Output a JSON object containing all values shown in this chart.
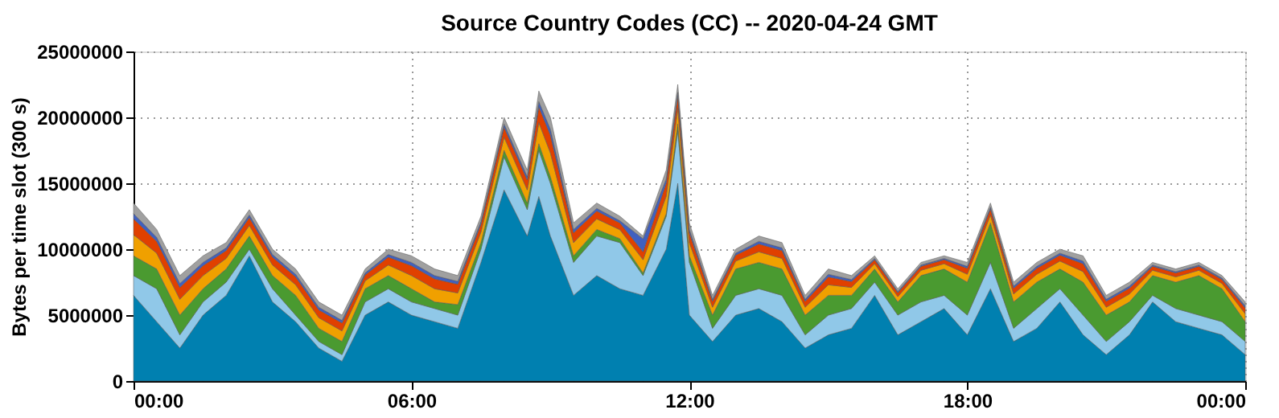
{
  "chart_data": {
    "type": "area",
    "title": "Source Country Codes (CC) -- 2020-04-24 GMT",
    "ylabel": "Bytes per time slot (300 s)",
    "stacked": true,
    "grid": true,
    "legend": false,
    "xlim": [
      0,
      24
    ],
    "xticks": [
      {
        "value": 0,
        "label": "00:00"
      },
      {
        "value": 6,
        "label": "06:00"
      },
      {
        "value": 12,
        "label": "12:00"
      },
      {
        "value": 18,
        "label": "18:00"
      },
      {
        "value": 24,
        "label": "00:00"
      }
    ],
    "ylim": [
      0,
      25000000
    ],
    "yticks": [
      0,
      5000000,
      10000000,
      15000000,
      20000000,
      25000000
    ],
    "x": [
      0,
      0.5,
      1,
      1.5,
      2,
      2.5,
      3,
      3.5,
      4,
      4.5,
      5,
      5.5,
      6,
      6.5,
      7,
      7.5,
      8,
      8.5,
      8.75,
      9,
      9.5,
      10,
      10.5,
      11,
      11.5,
      11.75,
      12,
      12.5,
      13,
      13.5,
      14,
      14.5,
      15,
      15.5,
      16,
      16.5,
      17,
      17.5,
      18,
      18.5,
      19,
      19.5,
      20,
      20.5,
      21,
      21.5,
      22,
      22.5,
      23,
      23.5,
      24
    ],
    "series": [
      {
        "color": "#0080b0",
        "values": [
          6500000,
          4500000,
          2500000,
          5000000,
          6500000,
          9500000,
          6000000,
          4500000,
          2500000,
          1500000,
          5000000,
          6000000,
          5000000,
          4500000,
          4000000,
          9000000,
          14500000,
          11000000,
          14000000,
          11000000,
          6500000,
          8000000,
          7000000,
          6500000,
          10000000,
          15000000,
          5000000,
          3000000,
          5000000,
          5500000,
          4500000,
          2500000,
          3500000,
          4000000,
          6500000,
          3500000,
          4500000,
          5500000,
          3500000,
          7000000,
          3000000,
          4000000,
          6000000,
          3500000,
          2000000,
          3500000,
          6000000,
          4500000,
          4000000,
          3500000,
          2000000
        ]
      },
      {
        "color": "#90c8e8",
        "values": [
          1500000,
          2500000,
          1000000,
          1000000,
          1000000,
          500000,
          1000000,
          500000,
          500000,
          500000,
          1000000,
          1000000,
          1000000,
          1000000,
          1000000,
          1000000,
          2500000,
          2000000,
          3500000,
          4000000,
          2500000,
          3000000,
          3500000,
          1500000,
          2500000,
          4000000,
          4000000,
          1000000,
          1500000,
          1500000,
          2000000,
          1000000,
          1500000,
          1500000,
          1000000,
          1500000,
          1500000,
          1000000,
          1500000,
          2000000,
          1000000,
          1500000,
          1000000,
          1500000,
          1000000,
          1000000,
          500000,
          1000000,
          1000000,
          1000000,
          1000000
        ]
      },
      {
        "color": "#4a9a30",
        "values": [
          1500000,
          1500000,
          1500000,
          1000000,
          1000000,
          1000000,
          1000000,
          1500000,
          1000000,
          1000000,
          1000000,
          1000000,
          1000000,
          500000,
          800000,
          500000,
          500000,
          500000,
          500000,
          500000,
          500000,
          500000,
          300000,
          200000,
          200000,
          500000,
          500000,
          1000000,
          2000000,
          2000000,
          2000000,
          1500000,
          1500000,
          1000000,
          1000000,
          1000000,
          2000000,
          2000000,
          2500000,
          3000000,
          2000000,
          2000000,
          1500000,
          2500000,
          2000000,
          1500000,
          1500000,
          2000000,
          3000000,
          2500000,
          1500000
        ]
      },
      {
        "color": "#f0a000",
        "values": [
          1600000,
          1200000,
          1200000,
          1000000,
          800000,
          800000,
          800000,
          800000,
          800000,
          800000,
          600000,
          800000,
          1000000,
          1000000,
          880000,
          800000,
          1000000,
          1000000,
          1600000,
          1800000,
          1000000,
          800000,
          680000,
          1000000,
          1320000,
          1200000,
          1000000,
          600000,
          600000,
          800000,
          800000,
          600000,
          800000,
          600000,
          400000,
          400000,
          400000,
          400000,
          600000,
          600000,
          600000,
          600000,
          600000,
          800000,
          600000,
          600000,
          400000,
          400000,
          400000,
          400000,
          600000
        ]
      },
      {
        "color": "#e04000",
        "values": [
          1200000,
          900000,
          900000,
          750000,
          600000,
          600000,
          600000,
          600000,
          600000,
          600000,
          450000,
          600000,
          750000,
          750000,
          660000,
          600000,
          750000,
          750000,
          1200000,
          1350000,
          750000,
          600000,
          510000,
          600000,
          990000,
          900000,
          750000,
          450000,
          450000,
          600000,
          600000,
          450000,
          600000,
          450000,
          300000,
          300000,
          300000,
          300000,
          450000,
          450000,
          450000,
          450000,
          450000,
          600000,
          450000,
          450000,
          300000,
          300000,
          300000,
          300000,
          450000
        ]
      },
      {
        "color": "#4060c0",
        "values": [
          400000,
          300000,
          300000,
          250000,
          200000,
          200000,
          200000,
          200000,
          200000,
          200000,
          150000,
          200000,
          250000,
          250000,
          220000,
          200000,
          250000,
          250000,
          400000,
          450000,
          250000,
          200000,
          170000,
          1000000,
          330000,
          300000,
          250000,
          150000,
          150000,
          200000,
          200000,
          150000,
          200000,
          150000,
          100000,
          100000,
          100000,
          100000,
          150000,
          150000,
          150000,
          150000,
          150000,
          200000,
          150000,
          150000,
          100000,
          100000,
          100000,
          100000,
          150000
        ]
      },
      {
        "color": "#a0a0a0",
        "values": [
          800000,
          600000,
          600000,
          500000,
          400000,
          400000,
          400000,
          400000,
          400000,
          400000,
          300000,
          400000,
          500000,
          500000,
          440000,
          400000,
          500000,
          500000,
          800000,
          900000,
          500000,
          400000,
          340000,
          200000,
          660000,
          600000,
          500000,
          300000,
          300000,
          400000,
          400000,
          300000,
          400000,
          300000,
          200000,
          200000,
          200000,
          200000,
          300000,
          300000,
          300000,
          300000,
          300000,
          400000,
          300000,
          300000,
          200000,
          200000,
          200000,
          200000,
          300000
        ]
      }
    ]
  }
}
